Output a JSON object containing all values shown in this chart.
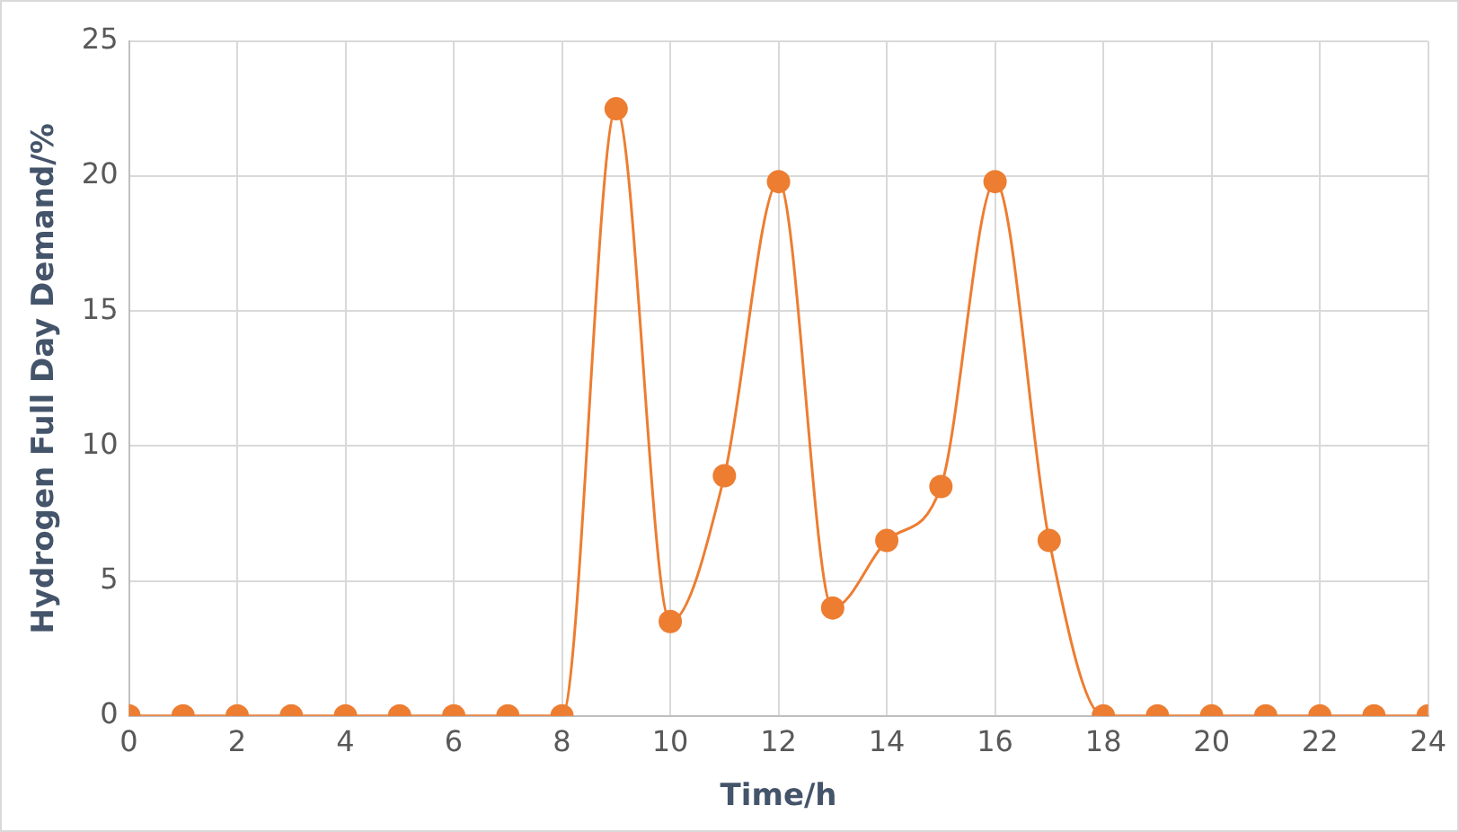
{
  "chart_data": {
    "type": "line",
    "xlabel": "Time/h",
    "ylabel": "Hydrogen Full Day Demand/%",
    "x": [
      0,
      1,
      2,
      3,
      4,
      5,
      6,
      7,
      8,
      9,
      10,
      11,
      12,
      13,
      14,
      15,
      16,
      17,
      18,
      19,
      20,
      21,
      22,
      23,
      24
    ],
    "series": [
      {
        "color": "#ed7d31",
        "values": [
          0,
          0,
          0,
          0,
          0,
          0,
          0,
          0,
          0,
          22.5,
          3.5,
          8.9,
          19.8,
          4.0,
          6.5,
          8.5,
          19.8,
          6.5,
          0,
          0,
          0,
          0,
          0,
          0,
          0
        ]
      }
    ],
    "xlim": [
      0,
      24
    ],
    "xticks": [
      0,
      2,
      4,
      6,
      8,
      10,
      12,
      14,
      16,
      18,
      20,
      22,
      24
    ],
    "ylim": [
      0,
      25
    ],
    "yticks": [
      0,
      5,
      10,
      15,
      20,
      25
    ],
    "grid": true,
    "marker": "circle",
    "line_style": "solid"
  }
}
